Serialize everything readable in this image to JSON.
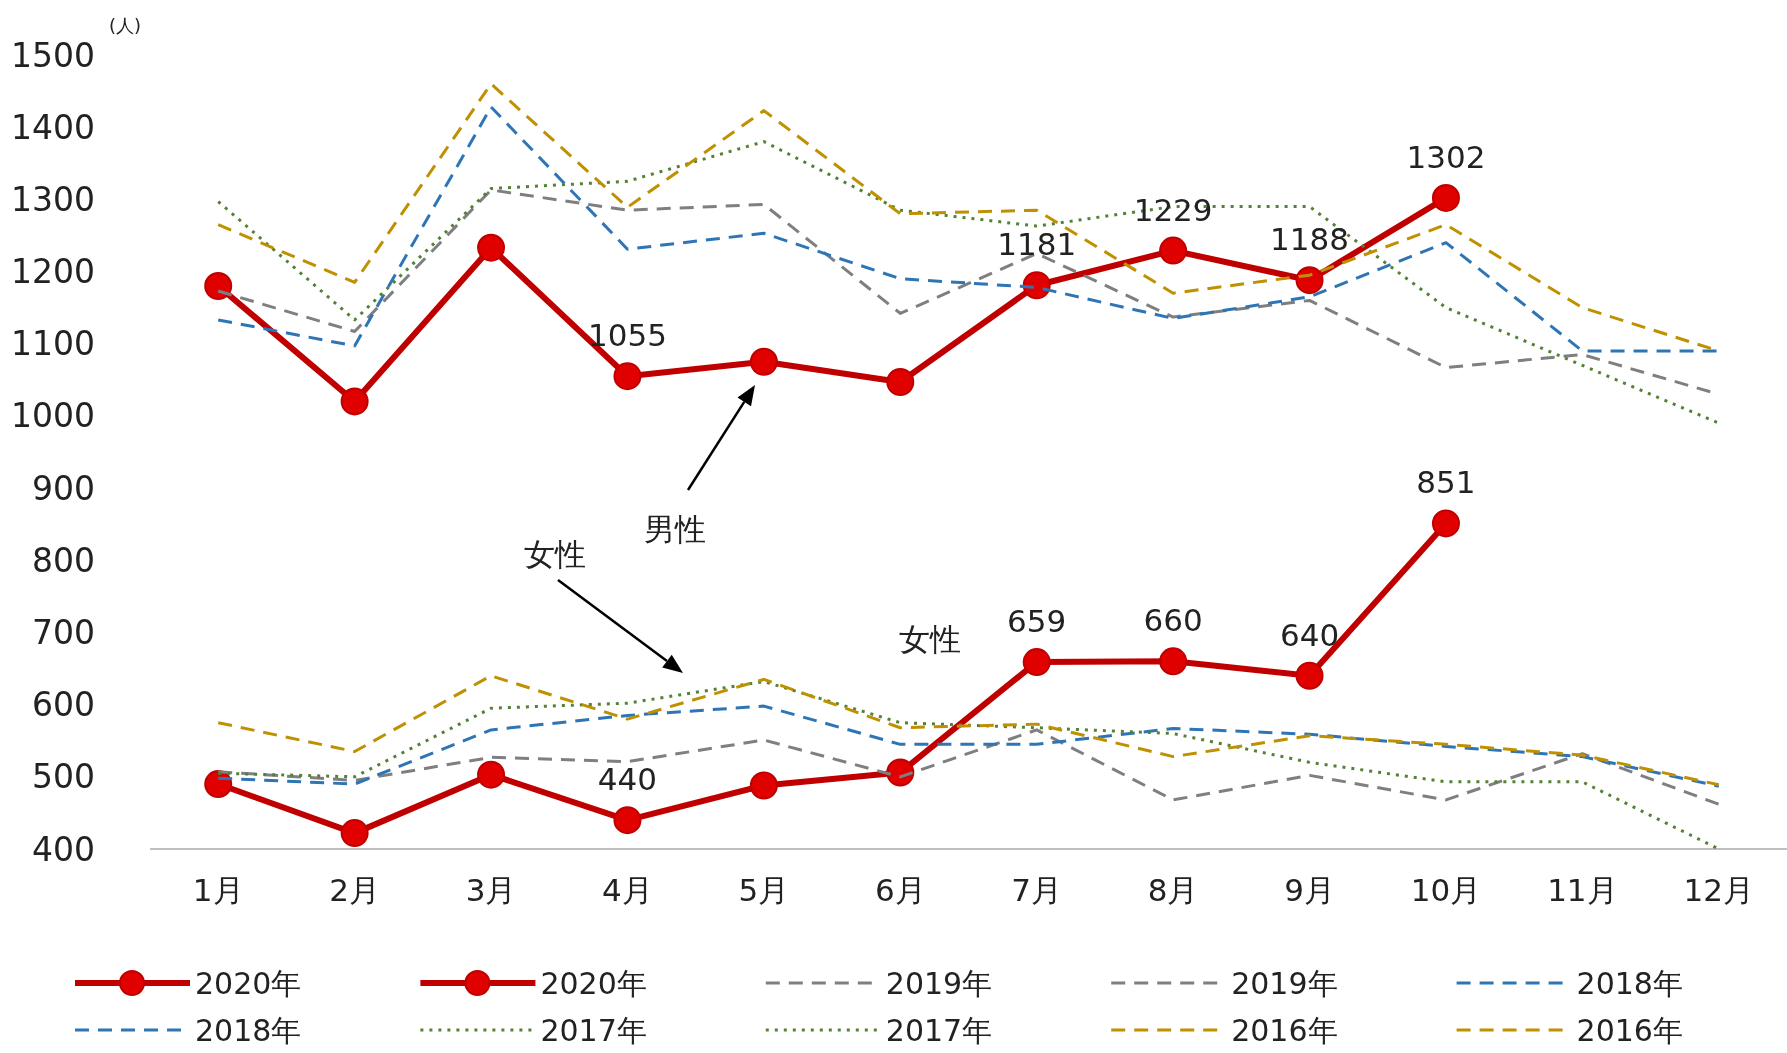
{
  "chart_data": {
    "type": "line",
    "ylabel": "(人)",
    "categories": [
      "1月",
      "2月",
      "3月",
      "4月",
      "5月",
      "6月",
      "7月",
      "8月",
      "9月",
      "10月",
      "11月",
      "12月"
    ],
    "ylim": [
      400,
      1500
    ],
    "yticks": [
      400,
      500,
      600,
      700,
      800,
      900,
      1000,
      1100,
      1200,
      1300,
      1400,
      1500
    ],
    "legend": "bottom",
    "series": [
      {
        "name": "2020年",
        "color": "#c00000",
        "line_style": "solid",
        "marker": "circle",
        "values": [
          1180,
          1020,
          1233,
          1055,
          1075,
          1047,
          1181,
          1229,
          1188,
          1302,
          null,
          null
        ],
        "value_labels": [
          null,
          null,
          null,
          "1055",
          null,
          null,
          "1181",
          "1229",
          "1188",
          "1302",
          null,
          null
        ]
      },
      {
        "name": "2020年",
        "color": "#c00000",
        "line_style": "solid",
        "marker": "circle",
        "values": [
          490,
          422,
          503,
          440,
          488,
          506,
          659,
          660,
          640,
          851,
          null,
          null
        ],
        "value_labels": [
          null,
          null,
          null,
          "440",
          null,
          null,
          "659",
          "660",
          "640",
          "851",
          null,
          null
        ]
      },
      {
        "name": "2019年",
        "color": "#7f7f7f",
        "line_style": "dashed",
        "marker": "none",
        "values": [
          1173,
          1117,
          1313,
          1285,
          1293,
          1142,
          1225,
          1137,
          1160,
          1067,
          1085,
          1030
        ]
      },
      {
        "name": "2019年",
        "color": "#7f7f7f",
        "line_style": "dashed",
        "marker": "none",
        "values": [
          507,
          495,
          527,
          521,
          551,
          500,
          565,
          468,
          502,
          468,
          532,
          462
        ]
      },
      {
        "name": "2018年",
        "color": "#2e75b6",
        "line_style": "dashed",
        "marker": "none",
        "values": [
          1133,
          1097,
          1428,
          1231,
          1253,
          1190,
          1178,
          1135,
          1165,
          1240,
          1090,
          1090
        ]
      },
      {
        "name": "2018年",
        "color": "#2e75b6",
        "line_style": "dashed",
        "marker": "none",
        "values": [
          498,
          490,
          565,
          585,
          598,
          545,
          545,
          567,
          559,
          542,
          528,
          487
        ]
      },
      {
        "name": "2017年",
        "color": "#548235",
        "line_style": "dotted",
        "marker": "none",
        "values": [
          1297,
          1133,
          1315,
          1325,
          1380,
          1285,
          1263,
          1290,
          1290,
          1150,
          1070,
          990
        ]
      },
      {
        "name": "2017年",
        "color": "#548235",
        "line_style": "dotted",
        "marker": "none",
        "values": [
          505,
          500,
          595,
          602,
          632,
          575,
          568,
          560,
          520,
          493,
          493,
          400
        ]
      },
      {
        "name": "2016年",
        "color": "#bf9000",
        "line_style": "dashed",
        "marker": "none",
        "values": [
          1265,
          1185,
          1460,
          1289,
          1423,
          1280,
          1285,
          1170,
          1195,
          1265,
          1150,
          1090
        ]
      },
      {
        "name": "2016年",
        "color": "#bf9000",
        "line_style": "dashed",
        "marker": "none",
        "values": [
          575,
          535,
          640,
          580,
          635,
          568,
          573,
          528,
          557,
          545,
          530,
          489
        ]
      }
    ],
    "annotations": [
      "男性",
      "女性",
      "女性"
    ]
  }
}
